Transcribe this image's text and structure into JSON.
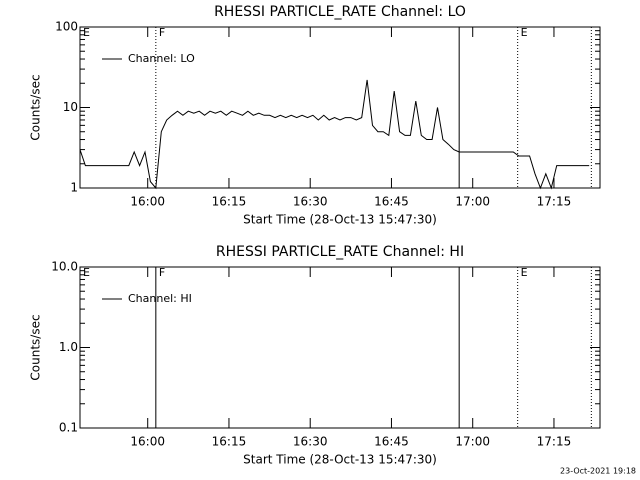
{
  "chart_data": [
    {
      "type": "line",
      "title": "RHESSI PARTICLE_RATE Channel: LO",
      "xlabel": "Start Time (28-Oct-13 15:47:30)",
      "ylabel": "Counts/sec",
      "log_y": true,
      "ylim": [
        1,
        100
      ],
      "yticks": [
        1,
        10,
        100
      ],
      "xlim": [
        0,
        96
      ],
      "xticks": [
        {
          "value": 12.5,
          "label": "16:00"
        },
        {
          "value": 27.5,
          "label": "16:15"
        },
        {
          "value": 42.5,
          "label": "16:30"
        },
        {
          "value": 57.5,
          "label": "16:45"
        },
        {
          "value": 72.5,
          "label": "17:00"
        },
        {
          "value": 87.5,
          "label": "17:15"
        }
      ],
      "legend": "upper-left",
      "markers": [
        {
          "x": 0,
          "label": "E",
          "style": "solid"
        },
        {
          "x": 14,
          "label": "F",
          "style": "dotted"
        },
        {
          "x": 70,
          "style": "solid"
        },
        {
          "x": 80.8,
          "label": "E",
          "style": "dotted"
        },
        {
          "x": 94.4,
          "style": "dotted"
        }
      ],
      "x": [
        0,
        1,
        2,
        3,
        4,
        5,
        6,
        7,
        8,
        9,
        10,
        11,
        12,
        13,
        14,
        15,
        16,
        17,
        18,
        19,
        20,
        21,
        22,
        23,
        24,
        25,
        26,
        27,
        28,
        29,
        30,
        31,
        32,
        33,
        34,
        35,
        36,
        37,
        38,
        39,
        40,
        41,
        42,
        43,
        44,
        45,
        46,
        47,
        48,
        49,
        50,
        51,
        52,
        53,
        54,
        55,
        56,
        57,
        58,
        59,
        60,
        61,
        62,
        63,
        64,
        65,
        66,
        67,
        68,
        69,
        70,
        71,
        72,
        73,
        74,
        75,
        76,
        77,
        78,
        79,
        80,
        81,
        82,
        83,
        84,
        85,
        86,
        87,
        88,
        89,
        90,
        91,
        92,
        93,
        94
      ],
      "series": [
        {
          "name": "Channel: LO",
          "color": "#000000",
          "values": [
            3,
            1.9,
            1.9,
            1.9,
            1.9,
            1.9,
            1.9,
            1.9,
            1.9,
            1.9,
            2.8,
            1.9,
            2.8,
            1.2,
            1,
            5,
            7,
            8,
            9,
            8,
            9,
            8.5,
            9,
            8,
            9,
            8.5,
            9,
            8,
            9,
            8.5,
            8,
            9,
            8,
            8.5,
            8,
            8,
            7.5,
            8,
            7.5,
            8,
            7.5,
            8,
            7.5,
            8,
            7,
            8,
            7,
            7.5,
            7,
            7.5,
            7.5,
            7,
            7.5,
            22,
            6,
            5,
            5,
            4.5,
            16,
            5,
            4.5,
            4.5,
            12,
            4.5,
            4,
            4,
            10,
            4,
            3.5,
            3,
            2.8,
            2.8,
            2.8,
            2.8,
            2.8,
            2.8,
            2.8,
            2.8,
            2.8,
            2.8,
            2.8,
            2.5,
            2.5,
            2.5,
            1.5,
            1,
            1.5,
            1,
            1.9,
            1.9,
            1.9,
            1.9,
            1.9,
            1.9,
            1.9
          ]
        }
      ]
    },
    {
      "type": "line",
      "title": "RHESSI PARTICLE_RATE Channel: HI",
      "xlabel": "Start Time (28-Oct-13 15:47:30)",
      "ylabel": "Counts/sec",
      "log_y": true,
      "ylim": [
        0.1,
        10
      ],
      "yticks": [
        0.1,
        {
          "value": 1,
          "label": "1.0"
        },
        {
          "value": 10,
          "label": "10.0"
        }
      ],
      "xlim": [
        0,
        96
      ],
      "xticks": [
        {
          "value": 12.5,
          "label": "16:00"
        },
        {
          "value": 27.5,
          "label": "16:15"
        },
        {
          "value": 42.5,
          "label": "16:30"
        },
        {
          "value": 57.5,
          "label": "16:45"
        },
        {
          "value": 72.5,
          "label": "17:00"
        },
        {
          "value": 87.5,
          "label": "17:15"
        }
      ],
      "legend": "upper-left",
      "markers": [
        {
          "x": 0,
          "label": "E",
          "style": "solid"
        },
        {
          "x": 14,
          "label": "F",
          "style": "solid"
        },
        {
          "x": 70,
          "style": "solid"
        },
        {
          "x": 80.8,
          "label": "E",
          "style": "dotted"
        },
        {
          "x": 94.4,
          "style": "dotted"
        }
      ],
      "x": [],
      "series": [
        {
          "name": "Channel: HI",
          "color": "#000000",
          "values": []
        }
      ]
    }
  ],
  "footer": "23-Oct-2021 19:18"
}
